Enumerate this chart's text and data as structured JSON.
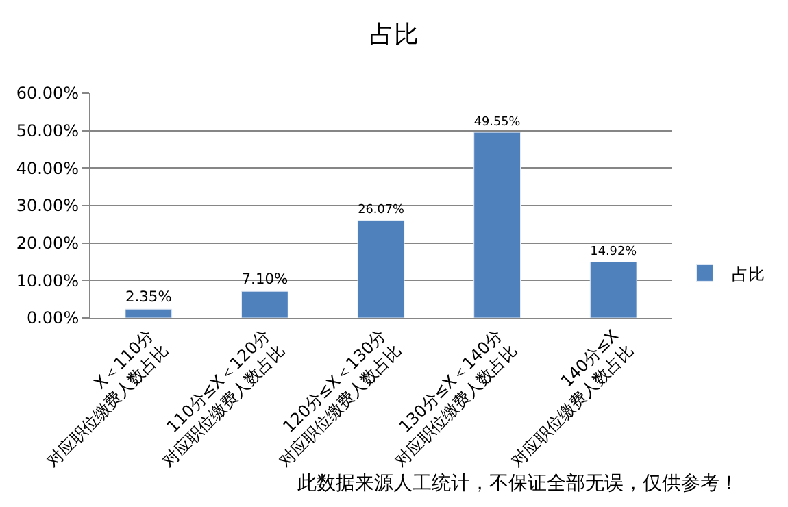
{
  "chart_data": {
    "type": "bar",
    "title": "占比",
    "categories": [
      "X＜110分\n对应职位缴费人数占比",
      "110分≤X＜120分\n对应职位缴费人数占比",
      "120分≤X＜130分\n对应职位缴费人数占比",
      "130分≤X＜140分\n对应职位缴费人数占比",
      "140分≤X\n对应职位缴费人数占比"
    ],
    "series": [
      {
        "name": "占比",
        "color": "#4f81bd",
        "values": [
          2.35,
          7.1,
          26.07,
          49.55,
          14.92
        ],
        "value_labels": [
          "2.35%",
          "7.10%",
          "26.07%",
          "49.55%",
          "14.92%"
        ]
      }
    ],
    "ylim": [
      0,
      60
    ],
    "yticks": [
      {
        "value": 0,
        "label": "0.00%"
      },
      {
        "value": 10,
        "label": "10.00%"
      },
      {
        "value": 20,
        "label": "20.00%"
      },
      {
        "value": 30,
        "label": "30.00%"
      },
      {
        "value": 40,
        "label": "40.00%"
      },
      {
        "value": 50,
        "label": "50.00%"
      },
      {
        "value": 60,
        "label": "60.00%"
      }
    ],
    "grid": "y",
    "legend": "right",
    "annotations": [
      "此数据来源人工统计，不保证全部无误，仅供参考！"
    ]
  }
}
